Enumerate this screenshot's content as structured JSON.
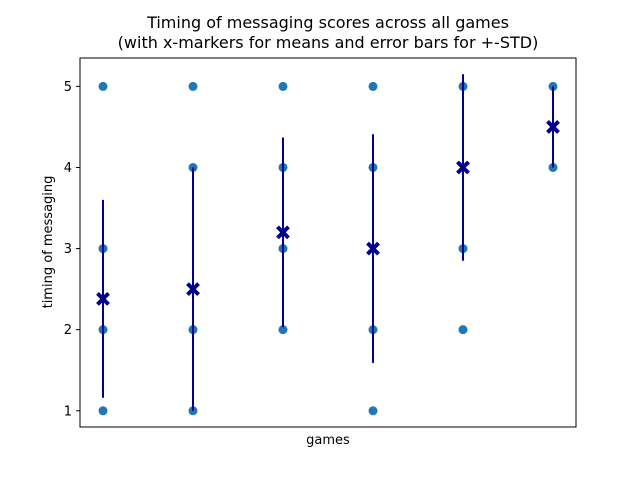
{
  "chart_data": {
    "type": "scatter",
    "title_line1": "Timing of messaging scores across all games",
    "title_line2": "(with x-markers for means and error bars for +-STD)",
    "xlabel": "games",
    "ylabel": "timing of messaging",
    "ylim": [
      0.8,
      5.35
    ],
    "yticks": [
      1,
      2,
      3,
      4,
      5
    ],
    "groups": [
      {
        "points": [
          1,
          2,
          3,
          5
        ],
        "mean": 2.38,
        "std": 1.22
      },
      {
        "points": [
          1,
          2,
          4,
          5
        ],
        "mean": 2.5,
        "std": 1.5
      },
      {
        "points": [
          2,
          3,
          4,
          5
        ],
        "mean": 3.2,
        "std": 1.17
      },
      {
        "points": [
          1,
          2,
          4,
          5
        ],
        "mean": 3.0,
        "std": 1.41
      },
      {
        "points": [
          2,
          3,
          5
        ],
        "mean": 4.0,
        "std": 1.15
      },
      {
        "points": [
          4,
          5
        ],
        "mean": 4.5,
        "std": 0.5
      }
    ],
    "grid": false,
    "colors": {
      "points": "#1f77b4",
      "mean": "#00008b",
      "errorbar": "#00008b"
    }
  }
}
